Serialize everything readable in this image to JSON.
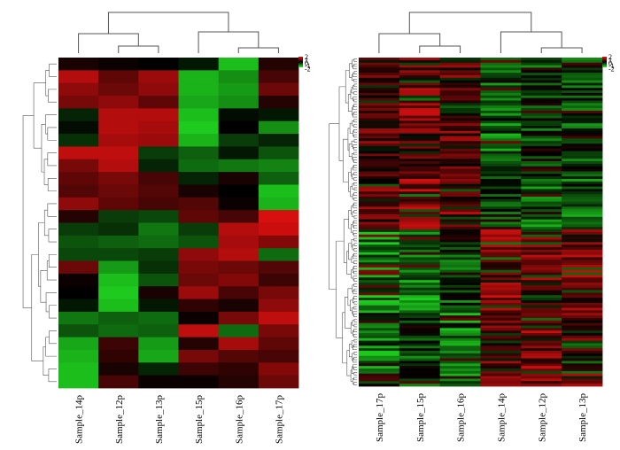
{
  "colors": {
    "low": "#22ee22",
    "mid": "#000000",
    "high": "#ee1111",
    "tree": "#555555"
  },
  "chart_data": [
    {
      "type": "heatmap",
      "title": "",
      "xlabel": "",
      "ylabel": "",
      "columns": [
        "Sample_14p",
        "Sample_12p",
        "Sample_13p",
        "Sample_15p",
        "Sample_16p",
        "Sample_17p"
      ],
      "color_scale": {
        "min": -2,
        "max": 2,
        "ticks": [
          "2",
          "1",
          "0",
          "-1",
          "-2"
        ]
      },
      "column_dendrogram_merges": [
        [
          1,
          2
        ],
        [
          4,
          5
        ],
        [
          0,
          "c12"
        ],
        [
          3,
          "c45"
        ],
        [
          "left",
          "right"
        ]
      ],
      "rows": [
        [
          0.2,
          0.1,
          0.0,
          -0.2,
          -1.6,
          0.3
        ],
        [
          1.5,
          0.8,
          1.3,
          -1.5,
          -1.2,
          0.6
        ],
        [
          1.2,
          0.9,
          1.2,
          -1.5,
          -1.3,
          0.9
        ],
        [
          1.0,
          1.2,
          0.8,
          -1.4,
          -1.2,
          0.3
        ],
        [
          -0.3,
          1.5,
          1.5,
          -1.6,
          -0.1,
          -0.2
        ],
        [
          -0.1,
          1.5,
          1.4,
          -1.7,
          0.0,
          -1.2
        ],
        [
          -0.4,
          1.4,
          1.3,
          -1.5,
          -0.5,
          -0.3
        ],
        [
          1.6,
          1.6,
          -0.5,
          -0.8,
          -0.2,
          -0.7
        ],
        [
          1.0,
          1.5,
          -0.3,
          -0.9,
          -1.0,
          -1.1
        ],
        [
          0.8,
          1.0,
          0.6,
          -0.3,
          0.2,
          -0.8
        ],
        [
          0.7,
          0.9,
          0.7,
          0.2,
          0.0,
          -1.6
        ],
        [
          1.2,
          0.8,
          0.6,
          0.7,
          0.1,
          -1.5
        ],
        [
          0.3,
          -0.5,
          -0.6,
          0.8,
          0.6,
          1.8
        ],
        [
          -0.5,
          -0.4,
          -1.0,
          -0.5,
          1.5,
          1.7
        ],
        [
          -0.7,
          -0.8,
          -0.9,
          -0.7,
          1.4,
          1.1
        ],
        [
          -0.6,
          -0.6,
          -0.5,
          1.2,
          1.5,
          -0.9
        ],
        [
          0.9,
          -1.3,
          -0.4,
          1.0,
          0.9,
          0.7
        ],
        [
          0.1,
          -1.6,
          -0.7,
          0.9,
          1.1,
          0.5
        ],
        [
          0.0,
          -1.7,
          0.2,
          1.3,
          0.6,
          1.0
        ],
        [
          -0.2,
          -1.6,
          -0.2,
          0.4,
          0.2,
          1.2
        ],
        [
          -1.0,
          -0.8,
          -0.9,
          0.1,
          1.0,
          1.6
        ],
        [
          -0.7,
          -0.9,
          -0.8,
          1.6,
          -0.9,
          1.0
        ],
        [
          -1.4,
          0.5,
          -1.3,
          0.3,
          1.4,
          0.8
        ],
        [
          -1.5,
          0.4,
          -1.4,
          1.0,
          0.7,
          0.6
        ],
        [
          -1.6,
          0.2,
          -0.3,
          0.5,
          0.4,
          1.1
        ],
        [
          -1.6,
          0.6,
          0.1,
          0.1,
          0.3,
          0.9
        ]
      ]
    },
    {
      "type": "heatmap",
      "title": "",
      "xlabel": "",
      "ylabel": "",
      "columns": [
        "Sample_17p",
        "Sample_15p",
        "Sample_16p",
        "Sample_14p",
        "Sample_12p",
        "Sample_13p"
      ],
      "color_scale": {
        "min": -2,
        "max": 2,
        "ticks": [
          "2",
          "1",
          "0",
          "-1",
          "-2"
        ]
      },
      "column_dendrogram_merges": [
        [
          1,
          2
        ],
        [
          4,
          5
        ],
        [
          0,
          "c12"
        ],
        [
          3,
          "c45"
        ],
        [
          "left",
          "right"
        ]
      ],
      "row_blocks": [
        {
          "count": 48,
          "pattern": [
            0.6,
            0.9,
            0.7,
            -0.8,
            -0.6,
            -0.5
          ]
        },
        {
          "count": 20,
          "pattern": [
            0.6,
            1.0,
            0.8,
            -0.3,
            -0.9,
            -0.8
          ]
        },
        {
          "count": 32,
          "pattern": [
            -1.0,
            -1.0,
            -0.5,
            1.0,
            0.9,
            0.9
          ]
        },
        {
          "count": 30,
          "pattern": [
            -0.9,
            -0.6,
            -0.9,
            0.9,
            1.0,
            0.8
          ]
        }
      ]
    }
  ]
}
